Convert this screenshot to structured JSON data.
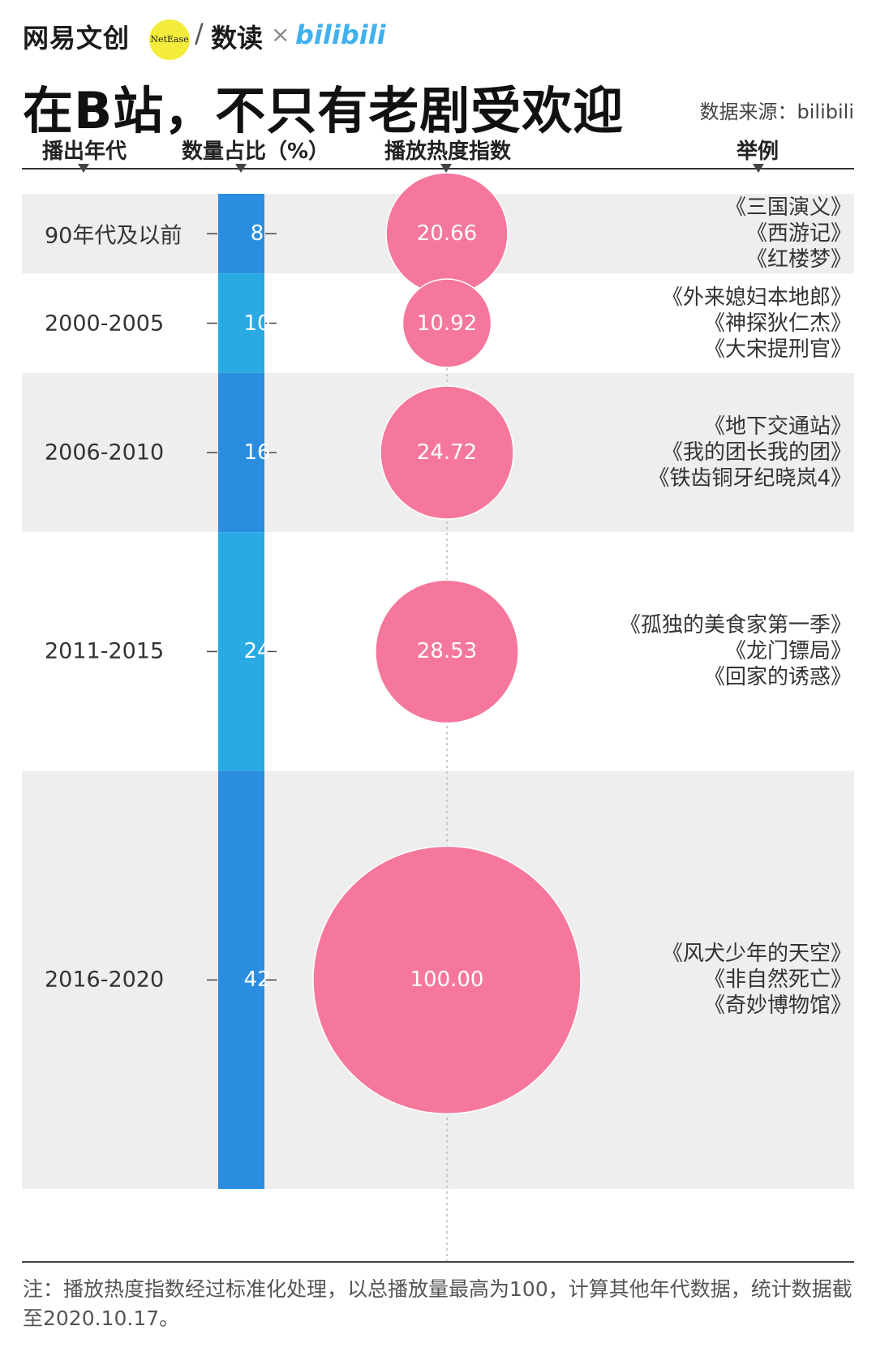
{
  "brand": {
    "netease": "网易文创",
    "badge": "NetEase",
    "slash": "/",
    "shudu": "数读",
    "cross": "×",
    "partner": "bilibili"
  },
  "title": "在B站，不只有老剧受欢迎",
  "source": "数据来源：bilibili",
  "chart_data": {
    "type": "table",
    "columns": [
      "播出年代",
      "数量占比（%）",
      "播放热度指数",
      "举例"
    ],
    "categories": [
      "90年代及以前",
      "2000-2005",
      "2006-2010",
      "2011-2015",
      "2016-2020"
    ],
    "series": [
      {
        "name": "数量占比（%）",
        "values": [
          8,
          10,
          16,
          24,
          42
        ]
      },
      {
        "name": "播放热度指数",
        "values": [
          20.66,
          10.92,
          24.72,
          28.53,
          100.0
        ]
      }
    ],
    "labels": {
      "share": [
        "8",
        "10",
        "16",
        "24",
        "42"
      ],
      "heat": [
        "20.66",
        "10.92",
        "24.72",
        "28.53",
        "100.00"
      ]
    },
    "examples": [
      [
        "《三国演义》",
        "《西游记》",
        "《红楼梦》"
      ],
      [
        "《外来媳妇本地郎》",
        "《神探狄仁杰》",
        "《大宋提刑官》"
      ],
      [
        "《地下交通站》",
        "《我的团长我的团》",
        "《铁齿铜牙纪晓岚4》"
      ],
      [
        "《孤独的美食家第一季》",
        "《龙门镖局》",
        "《回家的诱惑》"
      ],
      [
        "《风犬少年的天空》",
        "《非自然死亡》",
        "《奇妙博物馆》"
      ]
    ],
    "colors": {
      "bar_dark": "#2a8de0",
      "bar_light": "#29aae3",
      "bubble": "#f5789c",
      "row_shade": "#eeeeee"
    }
  },
  "footnote": "注：播放热度指数经过标准化处理，以总播放量最高为100，计算其他年代数据，统计数据截至2020.10.17。"
}
